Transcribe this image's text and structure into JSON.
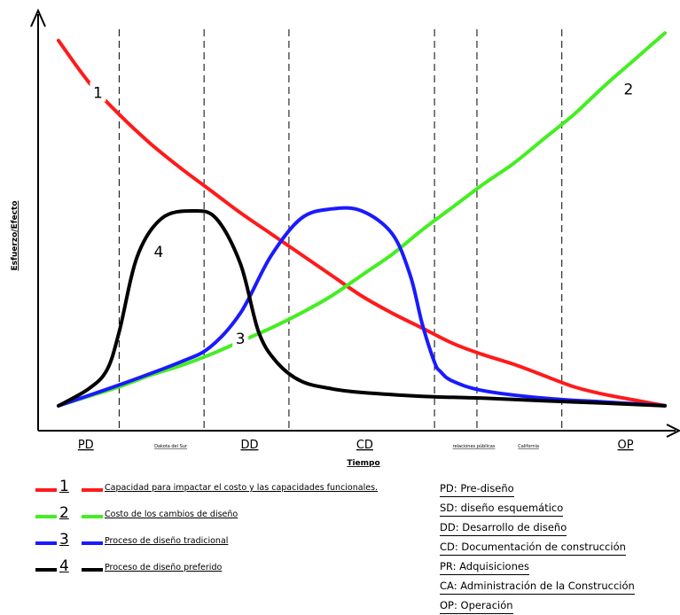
{
  "chart_data": {
    "type": "line",
    "xlabel": "Tiempo",
    "ylabel": "Esfuerzo/Efecto",
    "xlim": [
      0,
      100
    ],
    "ylim": [
      0,
      100
    ],
    "phase_labels": [
      {
        "label": "PD",
        "x": 4.5,
        "size": "large"
      },
      {
        "label": "Dakota del Sur",
        "x": 18.5,
        "size": "small"
      },
      {
        "label": "DD",
        "x": 31.5,
        "size": "large"
      },
      {
        "label": "CD",
        "x": 50.5,
        "size": "large"
      },
      {
        "label": "relaciones públicas",
        "x": 68.5,
        "size": "small"
      },
      {
        "label": "California",
        "x": 77.5,
        "size": "small"
      },
      {
        "label": "OP",
        "x": 93.5,
        "size": "large"
      }
    ],
    "phase_boundaries": [
      10,
      24,
      38,
      62,
      69,
      83
    ],
    "series": [
      {
        "label": "1",
        "color": "#ff1a1a",
        "x": [
          0,
          5,
          10,
          15,
          20,
          25,
          30,
          35,
          40,
          45,
          50,
          55,
          60,
          65,
          70,
          75,
          80,
          85,
          90,
          95,
          100
        ],
        "y": [
          97,
          86,
          77.5,
          70,
          63.5,
          57.5,
          51.5,
          46,
          40.5,
          35,
          29.5,
          25,
          21,
          17,
          14,
          11.5,
          8.5,
          5.5,
          3.5,
          2,
          0.5
        ]
      },
      {
        "label": "2",
        "color": "#44ee22",
        "x": [
          0,
          5,
          10,
          15,
          20,
          25,
          30,
          35,
          40,
          45,
          50,
          55,
          60,
          65,
          70,
          75,
          80,
          85,
          90,
          95,
          100
        ],
        "y": [
          0.5,
          3,
          5.5,
          8.5,
          11,
          14,
          17.5,
          21,
          25,
          29.5,
          35,
          40.5,
          47,
          53,
          59,
          64.5,
          71,
          77.5,
          85,
          92,
          99
        ]
      },
      {
        "label": "3",
        "color": "#1a1aff",
        "x": [
          0,
          10,
          20,
          25,
          30,
          35,
          40,
          45,
          50,
          55,
          58,
          60,
          62,
          63,
          65,
          70,
          80,
          90,
          100
        ],
        "y": [
          0.5,
          6,
          12,
          16,
          25,
          40,
          50,
          52.5,
          52,
          46,
          35,
          22,
          12,
          9.5,
          7,
          4.5,
          2.5,
          1.5,
          0.5
        ]
      },
      {
        "label": "4",
        "color": "#000000",
        "x": [
          0,
          5,
          8,
          10,
          13,
          17,
          22,
          26,
          30,
          33,
          36,
          40,
          45,
          50,
          60,
          70,
          80,
          90,
          100
        ],
        "y": [
          0.5,
          5,
          10,
          20,
          40,
          50,
          52,
          50,
          38,
          20,
          12,
          7,
          5,
          4,
          3,
          2.5,
          1.8,
          1.2,
          0.5
        ]
      }
    ],
    "curve_labels": [
      {
        "text": "1",
        "x": 6.5,
        "y": 83
      },
      {
        "text": "2",
        "x": 94,
        "y": 84
      },
      {
        "text": "3",
        "x": 30,
        "y": 18
      },
      {
        "text": "4",
        "x": 16.5,
        "y": 41
      }
    ]
  },
  "legend": [
    {
      "num": "1",
      "color": "#ff1a1a",
      "text": "Capacidad para impactar el costo y las capacidades funcionales."
    },
    {
      "num": "2",
      "color": "#44ee22",
      "text": "Costo de los cambios de diseño"
    },
    {
      "num": "3",
      "color": "#1a1aff",
      "text": "Proceso de diseño tradicional"
    },
    {
      "num": "4",
      "color": "#000000",
      "text": "Proceso de diseño preferido"
    }
  ],
  "abbreviations": [
    "PD: Pre-diseño",
    "SD: diseño esquemático",
    "DD: Desarrollo de diseño",
    "CD: Documentación de construcción",
    "PR: Adquisiciones",
    "CA: Administración de la Construcción",
    "OP: Operación"
  ]
}
